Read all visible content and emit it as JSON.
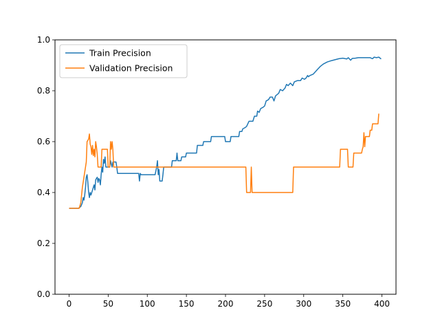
{
  "chart_data": {
    "type": "line",
    "title": "",
    "xlabel": "",
    "ylabel": "",
    "xlim": [
      -18,
      418
    ],
    "ylim": [
      0,
      1.0
    ],
    "xticks": [
      0,
      50,
      100,
      150,
      200,
      250,
      300,
      350,
      400
    ],
    "yticks": [
      0.0,
      0.2,
      0.4,
      0.6,
      0.8,
      1.0
    ],
    "xtick_labels": [
      "0",
      "50",
      "100",
      "150",
      "200",
      "250",
      "300",
      "350",
      "400"
    ],
    "ytick_labels": [
      "0.0",
      "0.2",
      "0.4",
      "0.6",
      "0.8",
      "1.0"
    ],
    "grid": false,
    "legend_position": "upper-left",
    "series": [
      {
        "name": "Train Precision",
        "color": "#1f77b4",
        "points": [
          [
            0,
            0.338
          ],
          [
            12,
            0.338
          ],
          [
            15,
            0.345
          ],
          [
            17,
            0.36
          ],
          [
            18,
            0.38
          ],
          [
            19,
            0.37
          ],
          [
            20,
            0.39
          ],
          [
            21,
            0.42
          ],
          [
            22,
            0.46
          ],
          [
            23,
            0.47
          ],
          [
            24,
            0.44
          ],
          [
            25,
            0.4
          ],
          [
            26,
            0.38
          ],
          [
            27,
            0.4
          ],
          [
            28,
            0.39
          ],
          [
            30,
            0.41
          ],
          [
            32,
            0.43
          ],
          [
            33,
            0.41
          ],
          [
            34,
            0.45
          ],
          [
            36,
            0.46
          ],
          [
            37,
            0.44
          ],
          [
            38,
            0.455
          ],
          [
            39,
            0.45
          ],
          [
            40,
            0.43
          ],
          [
            41,
            0.47
          ],
          [
            42,
            0.5
          ],
          [
            43,
            0.48
          ],
          [
            44,
            0.53
          ],
          [
            45,
            0.515
          ],
          [
            46,
            0.54
          ],
          [
            47,
            0.5
          ],
          [
            52,
            0.5
          ],
          [
            53,
            0.525
          ],
          [
            55,
            0.5
          ],
          [
            56,
            0.52
          ],
          [
            60,
            0.52
          ],
          [
            61,
            0.5
          ],
          [
            62,
            0.475
          ],
          [
            89,
            0.475
          ],
          [
            90,
            0.445
          ],
          [
            91,
            0.475
          ],
          [
            92,
            0.47
          ],
          [
            110,
            0.47
          ],
          [
            112,
            0.5
          ],
          [
            113,
            0.525
          ],
          [
            114,
            0.47
          ],
          [
            115,
            0.49
          ],
          [
            116,
            0.445
          ],
          [
            119,
            0.445
          ],
          [
            120,
            0.47
          ],
          [
            121,
            0.5
          ],
          [
            131,
            0.5
          ],
          [
            132,
            0.525
          ],
          [
            137,
            0.525
          ],
          [
            138,
            0.555
          ],
          [
            139,
            0.525
          ],
          [
            143,
            0.525
          ],
          [
            144,
            0.54
          ],
          [
            149,
            0.54
          ],
          [
            150,
            0.555
          ],
          [
            163,
            0.555
          ],
          [
            164,
            0.585
          ],
          [
            171,
            0.585
          ],
          [
            172,
            0.6
          ],
          [
            181,
            0.6
          ],
          [
            182,
            0.62
          ],
          [
            199,
            0.62
          ],
          [
            200,
            0.6
          ],
          [
            206,
            0.6
          ],
          [
            207,
            0.62
          ],
          [
            217,
            0.62
          ],
          [
            218,
            0.64
          ],
          [
            221,
            0.64
          ],
          [
            222,
            0.65
          ],
          [
            225,
            0.655
          ],
          [
            227,
            0.66
          ],
          [
            230,
            0.68
          ],
          [
            235,
            0.68
          ],
          [
            237,
            0.7
          ],
          [
            240,
            0.7
          ],
          [
            241,
            0.72
          ],
          [
            243,
            0.715
          ],
          [
            245,
            0.73
          ],
          [
            248,
            0.735
          ],
          [
            250,
            0.74
          ],
          [
            252,
            0.76
          ],
          [
            255,
            0.765
          ],
          [
            257,
            0.775
          ],
          [
            260,
            0.775
          ],
          [
            262,
            0.76
          ],
          [
            264,
            0.78
          ],
          [
            268,
            0.79
          ],
          [
            270,
            0.805
          ],
          [
            273,
            0.8
          ],
          [
            276,
            0.81
          ],
          [
            278,
            0.825
          ],
          [
            280,
            0.82
          ],
          [
            283,
            0.83
          ],
          [
            286,
            0.82
          ],
          [
            288,
            0.835
          ],
          [
            292,
            0.84
          ],
          [
            296,
            0.84
          ],
          [
            298,
            0.85
          ],
          [
            301,
            0.845
          ],
          [
            303,
            0.85
          ],
          [
            305,
            0.86
          ],
          [
            306,
            0.855
          ],
          [
            308,
            0.86
          ],
          [
            312,
            0.865
          ],
          [
            315,
            0.875
          ],
          [
            318,
            0.885
          ],
          [
            321,
            0.895
          ],
          [
            325,
            0.905
          ],
          [
            330,
            0.913
          ],
          [
            335,
            0.918
          ],
          [
            340,
            0.922
          ],
          [
            345,
            0.926
          ],
          [
            350,
            0.928
          ],
          [
            355,
            0.925
          ],
          [
            357,
            0.93
          ],
          [
            360,
            0.92
          ],
          [
            362,
            0.927
          ],
          [
            366,
            0.928
          ],
          [
            370,
            0.93
          ],
          [
            375,
            0.93
          ],
          [
            380,
            0.93
          ],
          [
            385,
            0.93
          ],
          [
            388,
            0.926
          ],
          [
            390,
            0.932
          ],
          [
            393,
            0.93
          ],
          [
            396,
            0.932
          ],
          [
            399,
            0.925
          ]
        ]
      },
      {
        "name": "Validation Precision",
        "color": "#ff7f0e",
        "points": [
          [
            0,
            0.338
          ],
          [
            13,
            0.338
          ],
          [
            15,
            0.36
          ],
          [
            17,
            0.42
          ],
          [
            19,
            0.46
          ],
          [
            21,
            0.5
          ],
          [
            22,
            0.52
          ],
          [
            23,
            0.6
          ],
          [
            25,
            0.61
          ],
          [
            26,
            0.63
          ],
          [
            27,
            0.59
          ],
          [
            28,
            0.58
          ],
          [
            29,
            0.55
          ],
          [
            30,
            0.585
          ],
          [
            31,
            0.545
          ],
          [
            32,
            0.57
          ],
          [
            33,
            0.54
          ],
          [
            34,
            0.6
          ],
          [
            35,
            0.58
          ],
          [
            36,
            0.55
          ],
          [
            37,
            0.5
          ],
          [
            41,
            0.5
          ],
          [
            42,
            0.57
          ],
          [
            49,
            0.57
          ],
          [
            50,
            0.5
          ],
          [
            52,
            0.5
          ],
          [
            53,
            0.6
          ],
          [
            54,
            0.57
          ],
          [
            55,
            0.6
          ],
          [
            56,
            0.57
          ],
          [
            57,
            0.5
          ],
          [
            226,
            0.5
          ],
          [
            227,
            0.4
          ],
          [
            232,
            0.4
          ],
          [
            233,
            0.5
          ],
          [
            234,
            0.4
          ],
          [
            286,
            0.4
          ],
          [
            287,
            0.5
          ],
          [
            346,
            0.5
          ],
          [
            347,
            0.57
          ],
          [
            356,
            0.57
          ],
          [
            357,
            0.5
          ],
          [
            363,
            0.5
          ],
          [
            364,
            0.555
          ],
          [
            374,
            0.555
          ],
          [
            375,
            0.57
          ],
          [
            376,
            0.58
          ],
          [
            377,
            0.635
          ],
          [
            378,
            0.58
          ],
          [
            379,
            0.62
          ],
          [
            384,
            0.62
          ],
          [
            385,
            0.645
          ],
          [
            387,
            0.645
          ],
          [
            388,
            0.67
          ],
          [
            395,
            0.67
          ],
          [
            396,
            0.71
          ]
        ]
      }
    ]
  }
}
